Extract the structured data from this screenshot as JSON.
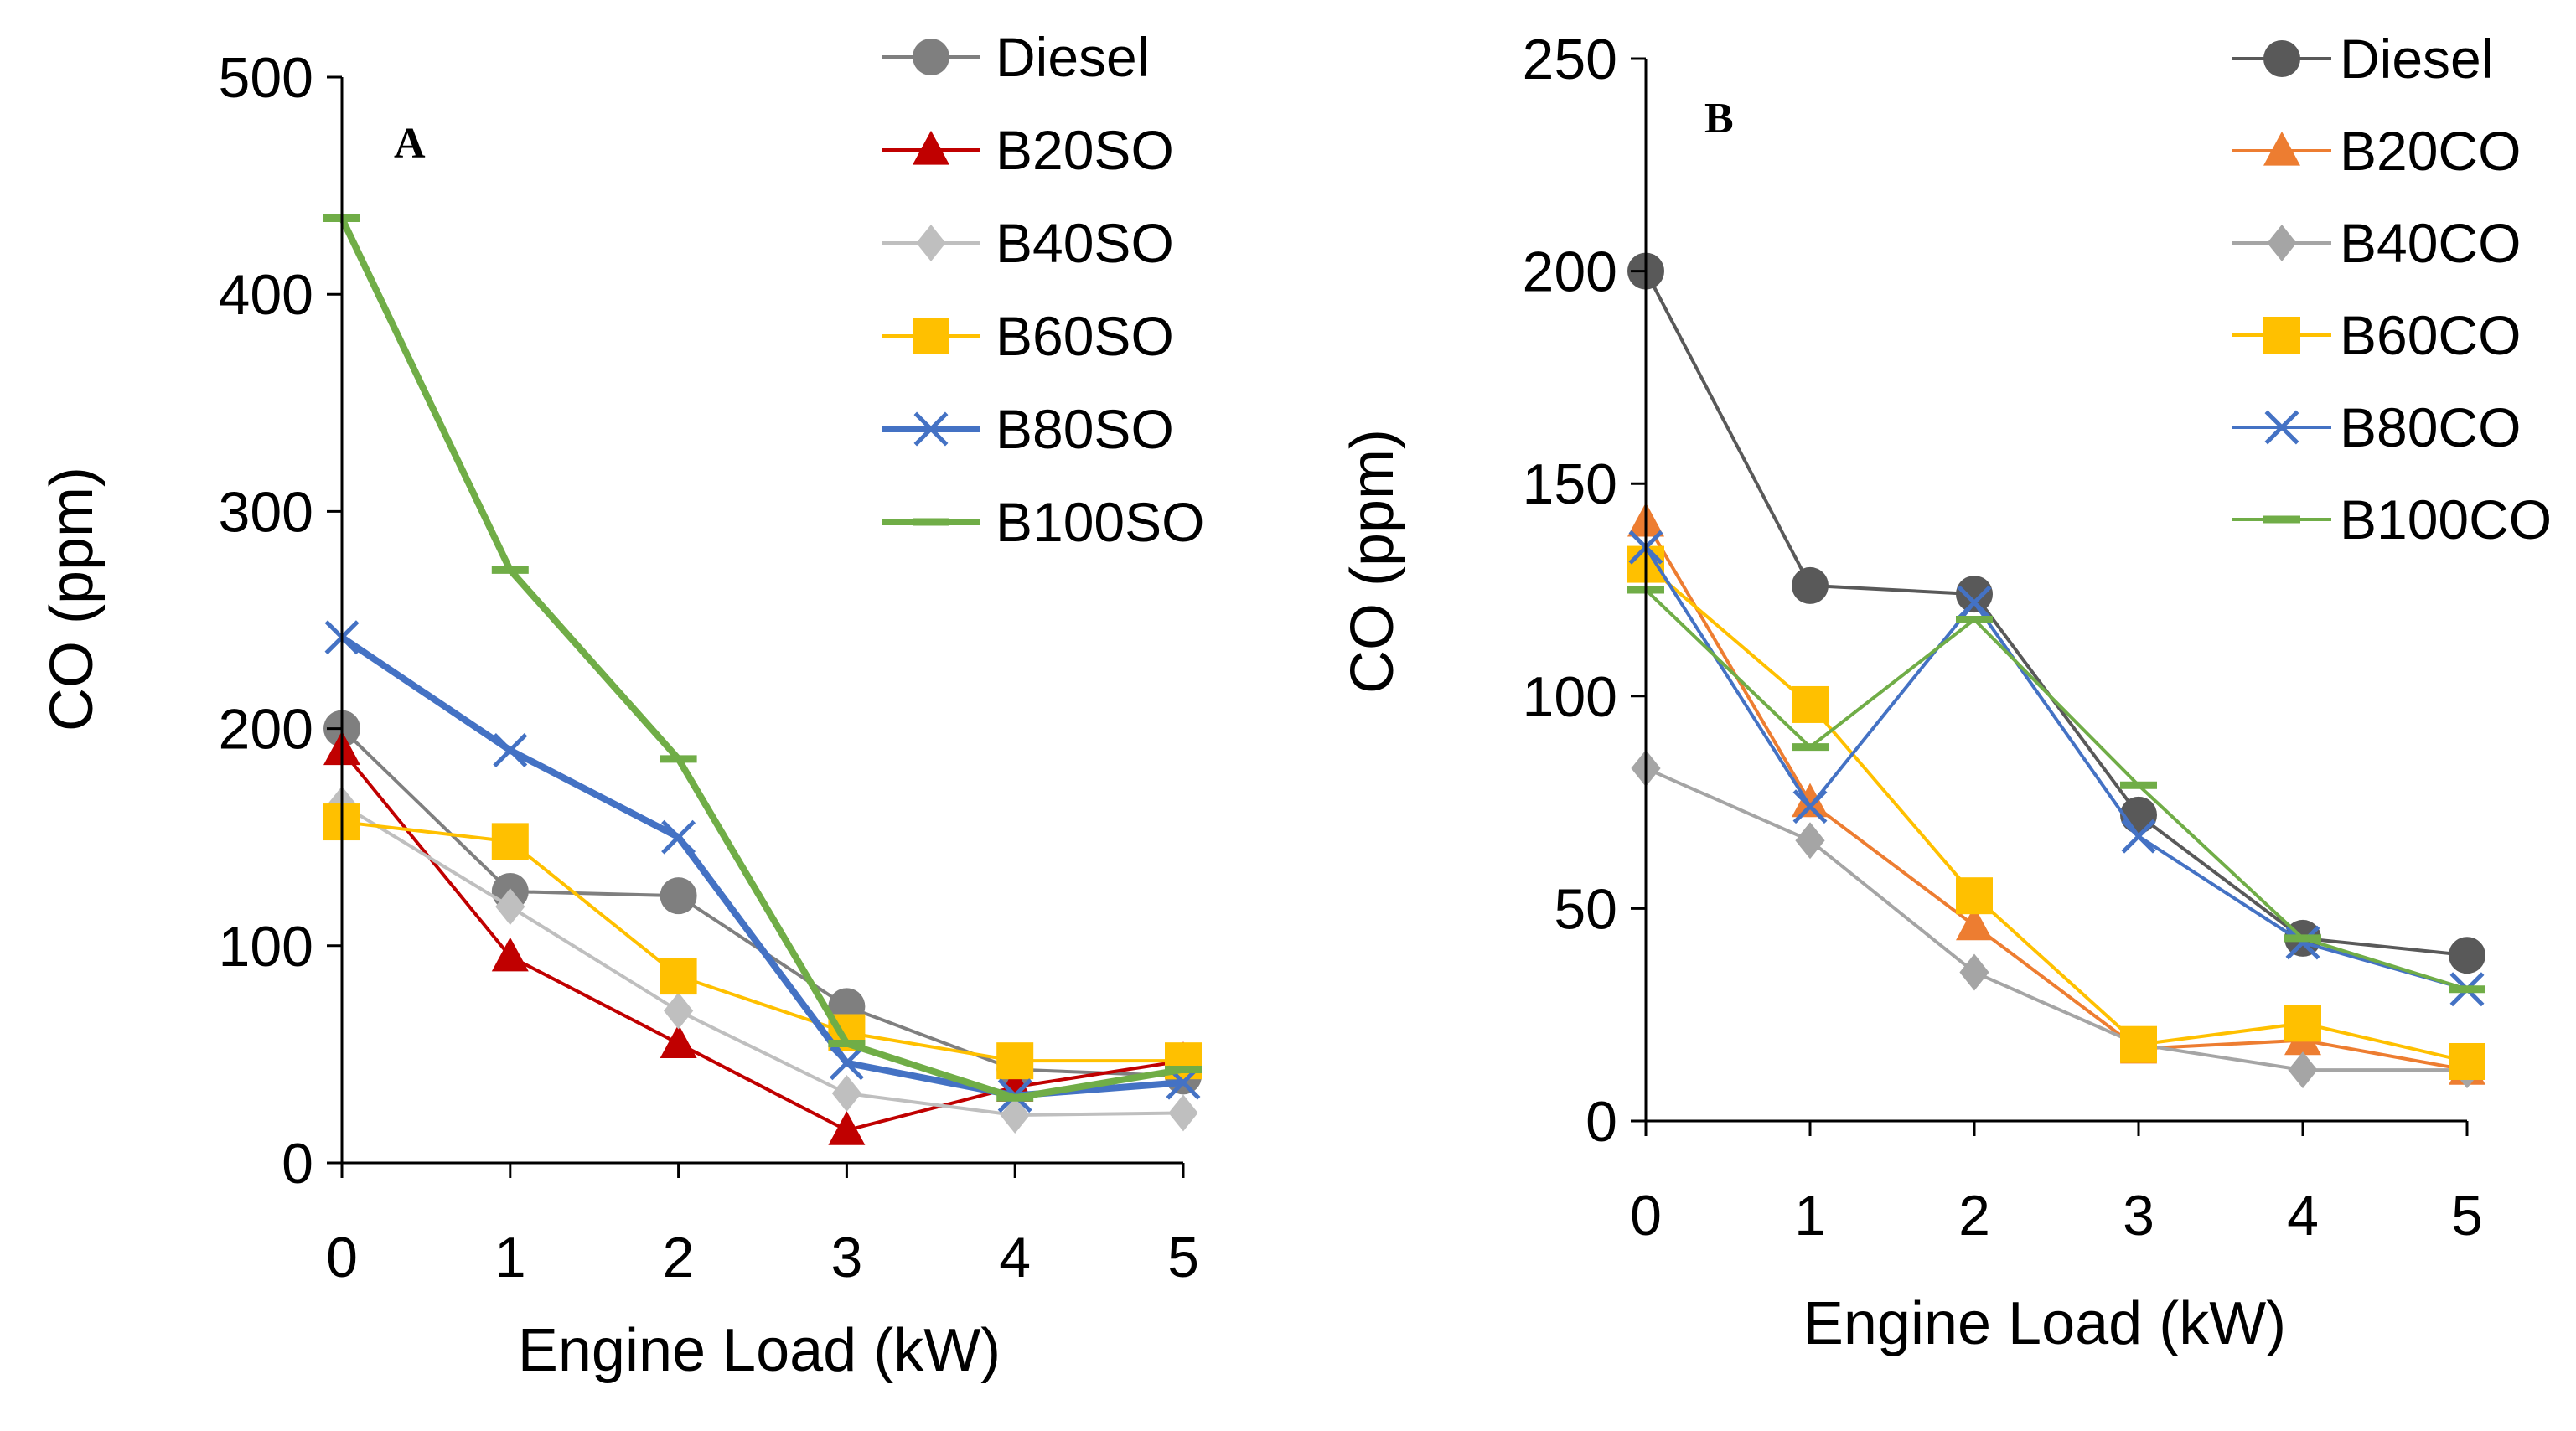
{
  "chart_data": [
    {
      "type": "line",
      "panel_label": "A",
      "xlabel": "Engine Load (kW)",
      "ylabel": "CO (ppm)",
      "x": [
        0,
        1,
        2,
        3,
        4,
        5
      ],
      "xlim": [
        0,
        5
      ],
      "ylim": [
        0,
        500
      ],
      "yticks": [
        0,
        100,
        200,
        300,
        400,
        500
      ],
      "grid": false,
      "legend_position": "top-right",
      "series": [
        {
          "name": "Diesel",
          "values": [
            200,
            125,
            123,
            72,
            43,
            40
          ],
          "color": "#7f7f7f",
          "marker": "circle"
        },
        {
          "name": "B20SO",
          "values": [
            190,
            95,
            55,
            15,
            35,
            47
          ],
          "color": "#c00000",
          "marker": "triangle"
        },
        {
          "name": "B40SO",
          "values": [
            165,
            118,
            70,
            32,
            22,
            23
          ],
          "color": "#bfbfbf",
          "marker": "diamond"
        },
        {
          "name": "B60SO",
          "values": [
            157,
            148,
            86,
            60,
            47,
            47
          ],
          "color": "#ffc000",
          "marker": "square"
        },
        {
          "name": "B80SO",
          "values": [
            242,
            190,
            150,
            46,
            31,
            37
          ],
          "color": "#4472c4",
          "marker": "x"
        },
        {
          "name": "B100SO",
          "values": [
            435,
            273,
            186,
            55,
            30,
            43
          ],
          "color": "#70ad47",
          "marker": "dash"
        }
      ]
    },
    {
      "type": "line",
      "panel_label": "B",
      "xlabel": "Engine Load (kW)",
      "ylabel": "CO (ppm)",
      "x": [
        0,
        1,
        2,
        3,
        4,
        5
      ],
      "xlim": [
        0,
        5
      ],
      "ylim": [
        0,
        250
      ],
      "yticks": [
        0,
        50,
        100,
        150,
        200,
        250
      ],
      "grid": false,
      "legend_position": "top-right",
      "series": [
        {
          "name": "Diesel",
          "values": [
            200,
            126,
            124,
            72,
            43,
            39
          ],
          "color": "#595959",
          "marker": "circle"
        },
        {
          "name": "B20CO",
          "values": [
            141,
            75,
            46,
            17,
            19,
            12
          ],
          "color": "#ed7d31",
          "marker": "triangle"
        },
        {
          "name": "B40CO",
          "values": [
            83,
            66,
            35,
            18,
            12,
            12
          ],
          "color": "#a5a5a5",
          "marker": "diamond"
        },
        {
          "name": "B60CO",
          "values": [
            131,
            98,
            53,
            18,
            23,
            14
          ],
          "color": "#ffc000",
          "marker": "square"
        },
        {
          "name": "B80CO",
          "values": [
            135,
            74,
            122,
            67,
            42,
            31
          ],
          "color": "#4472c4",
          "marker": "x"
        },
        {
          "name": "B100CO",
          "values": [
            125,
            88,
            118,
            79,
            43,
            31
          ],
          "color": "#70ad47",
          "marker": "dash"
        }
      ]
    }
  ]
}
